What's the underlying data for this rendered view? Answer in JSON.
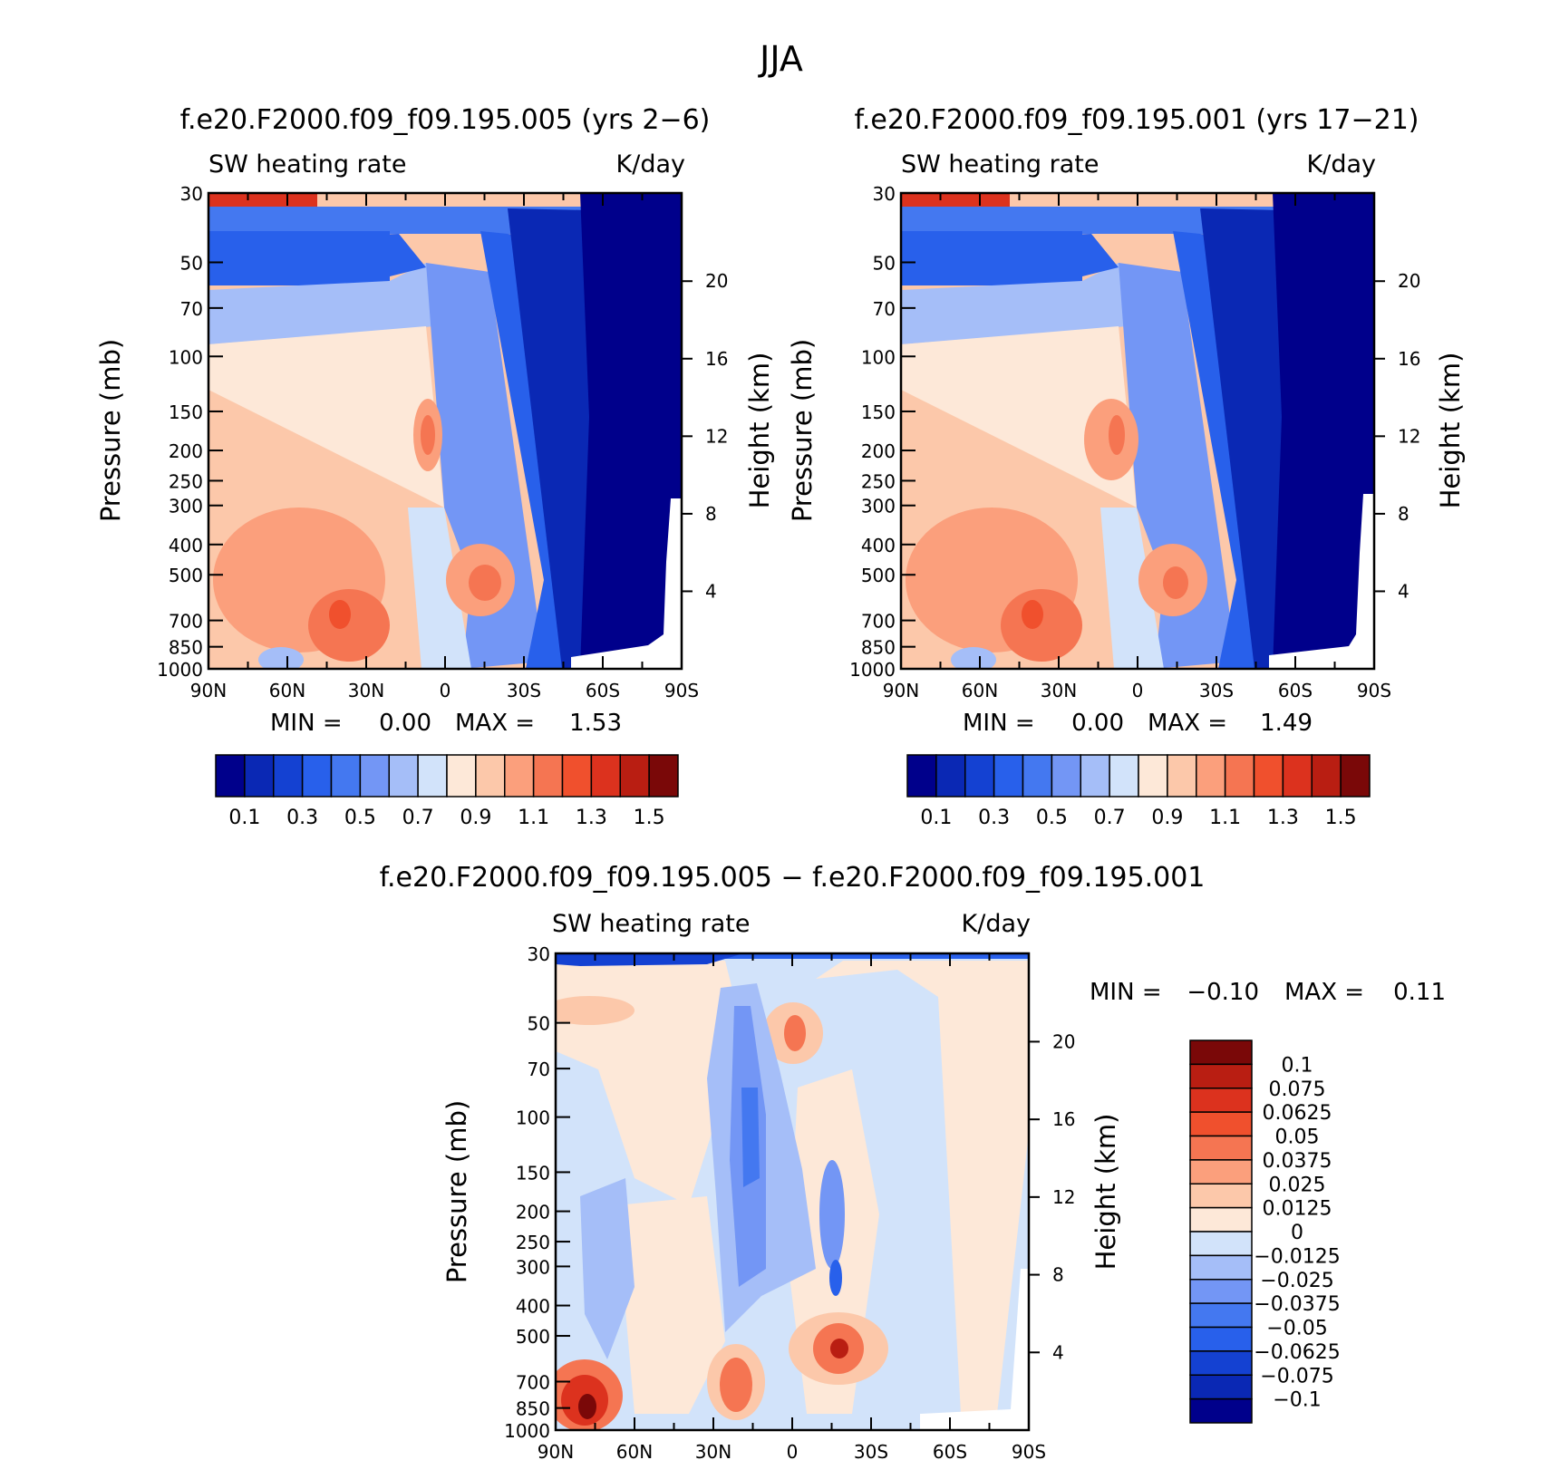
{
  "figure_title": "JJA",
  "palettes": {
    "abs": [
      "#00008b",
      "#0a28b4",
      "#1441d2",
      "#2860eb",
      "#4478f0",
      "#7396f5",
      "#a5bef8",
      "#d2e3fa",
      "#fde8d8",
      "#fcc8aa",
      "#fb9f7c",
      "#f57552",
      "#f0502d",
      "#dc321e",
      "#b91e12",
      "#7a0808"
    ],
    "diff": [
      "#00008b",
      "#0a28b4",
      "#1441d2",
      "#2860eb",
      "#4478f0",
      "#7396f5",
      "#a5bef8",
      "#d2e3fa",
      "#fde8d8",
      "#fcc8aa",
      "#fb9f7c",
      "#f57552",
      "#f0502d",
      "#dc321e",
      "#b91e12",
      "#7a0808"
    ]
  },
  "chart_data": [
    {
      "type": "heatmap",
      "title": "f.e20.F2000.f09_f09.195.005 (yrs 2−6)",
      "variable": "SW heating rate",
      "units": "K/day",
      "ylabel": "Pressure (mb)",
      "ylabel_right": "Height (km)",
      "x_ticks": [
        "90N",
        "60N",
        "30N",
        "0",
        "30S",
        "60S",
        "90S"
      ],
      "xlim": [
        90,
        -90
      ],
      "y_ticks": [
        "30",
        "50",
        "70",
        "100",
        "150",
        "200",
        "250",
        "300",
        "400",
        "500",
        "700",
        "850",
        "1000"
      ],
      "ylim": [
        30,
        1000
      ],
      "height_ticks": [
        "20",
        "16",
        "12",
        "8",
        "4"
      ],
      "min_label": "MIN =",
      "min_value": "0.00",
      "max_label": "MAX =",
      "max_value": "1.53",
      "colorbar_labels": [
        "0.1",
        "0.3",
        "0.5",
        "0.7",
        "0.9",
        "1.1",
        "1.3",
        "1.5"
      ]
    },
    {
      "type": "heatmap",
      "title": "f.e20.F2000.f09_f09.195.001 (yrs 17−21)",
      "variable": "SW heating rate",
      "units": "K/day",
      "ylabel": "Pressure (mb)",
      "ylabel_right": "Height (km)",
      "x_ticks": [
        "90N",
        "60N",
        "30N",
        "0",
        "30S",
        "60S",
        "90S"
      ],
      "xlim": [
        90,
        -90
      ],
      "y_ticks": [
        "30",
        "50",
        "70",
        "100",
        "150",
        "200",
        "250",
        "300",
        "400",
        "500",
        "700",
        "850",
        "1000"
      ],
      "ylim": [
        30,
        1000
      ],
      "height_ticks": [
        "20",
        "16",
        "12",
        "8",
        "4"
      ],
      "min_label": "MIN =",
      "min_value": "0.00",
      "max_label": "MAX =",
      "max_value": "1.49",
      "colorbar_labels": [
        "0.1",
        "0.3",
        "0.5",
        "0.7",
        "0.9",
        "1.1",
        "1.3",
        "1.5"
      ]
    },
    {
      "type": "heatmap",
      "title": "f.e20.F2000.f09_f09.195.005 − f.e20.F2000.f09_f09.195.001",
      "variable": "SW heating rate",
      "units": "K/day",
      "ylabel": "Pressure (mb)",
      "ylabel_right": "Height (km)",
      "x_ticks": [
        "90N",
        "60N",
        "30N",
        "0",
        "30S",
        "60S",
        "90S"
      ],
      "xlim": [
        90,
        -90
      ],
      "y_ticks": [
        "30",
        "50",
        "70",
        "100",
        "150",
        "200",
        "250",
        "300",
        "400",
        "500",
        "700",
        "850",
        "1000"
      ],
      "ylim": [
        30,
        1000
      ],
      "height_ticks": [
        "20",
        "16",
        "12",
        "8",
        "4"
      ],
      "min_label": "MIN =",
      "min_value": "−0.10",
      "max_label": "MAX =",
      "max_value": "0.11",
      "colorbar_labels": [
        "0.1",
        "0.075",
        "0.0625",
        "0.05",
        "0.0375",
        "0.025",
        "0.0125",
        "0",
        "−0.0125",
        "−0.025",
        "−0.0375",
        "−0.05",
        "−0.0625",
        "−0.075",
        "−0.1"
      ]
    }
  ]
}
